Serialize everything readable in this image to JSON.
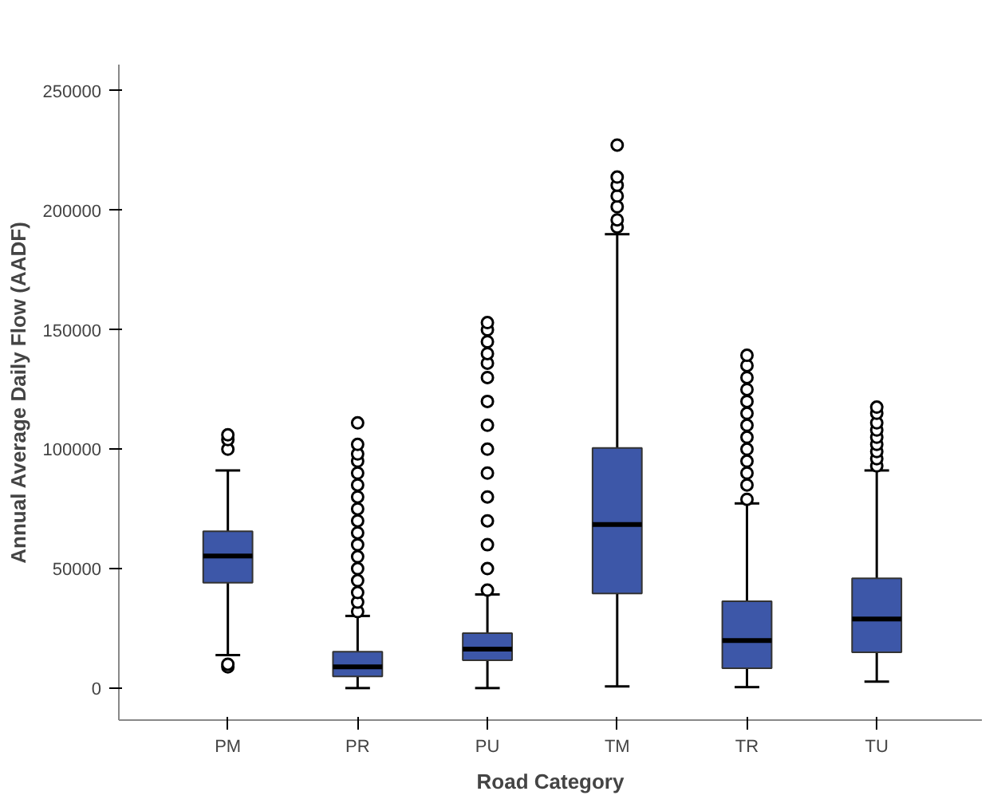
{
  "chart_data": {
    "type": "box",
    "xlabel": "Road Category",
    "ylabel": "Annual Average Daily Flow (AADF)",
    "categories": [
      "PM",
      "PR",
      "PU",
      "TM",
      "TR",
      "TU"
    ],
    "color": "#3d57a8",
    "boxes": [
      {
        "low": 13800,
        "q1": 44100,
        "median": 55300,
        "q3": 65600,
        "high": 91100,
        "outliers": [
          8900,
          10000,
          100000,
          104000,
          106000
        ]
      },
      {
        "low": 0,
        "q1": 4900,
        "median": 8900,
        "q3": 15200,
        "high": 30200,
        "outliers": [
          32000,
          36000,
          40000,
          45000,
          50000,
          55000,
          60000,
          65000,
          70000,
          75000,
          80000,
          85000,
          90000,
          95000,
          98000,
          102000,
          111000
        ]
      },
      {
        "low": 0,
        "q1": 11600,
        "median": 16300,
        "q3": 23000,
        "high": 39200,
        "outliers": [
          41000,
          50000,
          60000,
          70000,
          80000,
          90000,
          100000,
          110000,
          120000,
          130000,
          136000,
          140000,
          145000,
          150000,
          153000
        ]
      },
      {
        "low": 700,
        "q1": 39600,
        "median": 68500,
        "q3": 100500,
        "high": 190000,
        "outliers": [
          193000,
          196000,
          201500,
          206000,
          210500,
          213900,
          227300
        ]
      },
      {
        "low": 400,
        "q1": 8300,
        "median": 19900,
        "q3": 36300,
        "high": 77300,
        "outliers": [
          79000,
          85000,
          90000,
          95000,
          100000,
          105000,
          110000,
          115000,
          120000,
          125000,
          130000,
          135000,
          139300
        ]
      },
      {
        "low": 2700,
        "q1": 15000,
        "median": 28900,
        "q3": 45900,
        "high": 91100,
        "outliers": [
          93000,
          96000,
          99000,
          102000,
          105000,
          108000,
          111000,
          115000,
          117600
        ]
      }
    ],
    "ylim": [
      -13400,
      261000
    ],
    "yticks": [
      0,
      50000,
      100000,
      150000,
      200000,
      250000
    ],
    "grid": false
  }
}
